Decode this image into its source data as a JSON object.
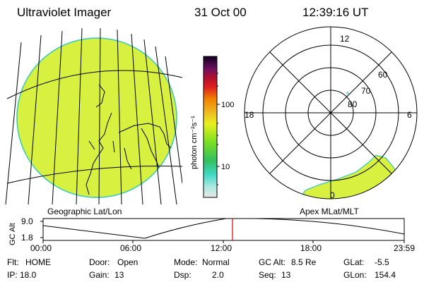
{
  "header": {
    "instrument": "Ultraviolet Imager",
    "date": "31 Oct 00",
    "time": "12:39:16 UT"
  },
  "colorbar": {
    "unit": "photon cm⁻²s⁻¹",
    "ticks": [
      "100",
      "10"
    ],
    "stops": [
      "#e8e8e8",
      "#60e8d8",
      "#20c8b0",
      "#30c040",
      "#90e020",
      "#e8f020",
      "#f0b020",
      "#f08000",
      "#e02020",
      "#c01020",
      "#801060",
      "#401060",
      "#100020"
    ]
  },
  "left_map": {
    "label": "Geographic Lat/Lon",
    "fill_color": "#d8f040"
  },
  "right_map": {
    "label": "Apex  MLat/MLT",
    "mlt_labels": [
      "12",
      "18",
      "6",
      "0"
    ],
    "mlat_labels": [
      "60",
      "70",
      "80"
    ]
  },
  "altitude_plot": {
    "ylabel": "GC Alt",
    "yticks": [
      "9.0",
      "1.8"
    ],
    "xticks": [
      "00:00",
      "06:00",
      "12:00",
      "18:00",
      "23:59"
    ],
    "current_time_color": "#e00000"
  },
  "info": {
    "row1": [
      {
        "label": "Flt:",
        "value": "HOME"
      },
      {
        "label": "Door:",
        "value": "Open"
      },
      {
        "label": "Mode:",
        "value": "Normal"
      },
      {
        "label": "GC Alt:",
        "value": "8.5 Re"
      },
      {
        "label": "GLat:",
        "value": "-5.5"
      }
    ],
    "row2": [
      {
        "label": "IP:",
        "value": "18.0"
      },
      {
        "label": "Gain:",
        "value": "13"
      },
      {
        "label": "Dsp:",
        "value": "2.0"
      },
      {
        "label": "Seq:",
        "value": "13"
      },
      {
        "label": "GLon:",
        "value": "154.4"
      }
    ]
  }
}
